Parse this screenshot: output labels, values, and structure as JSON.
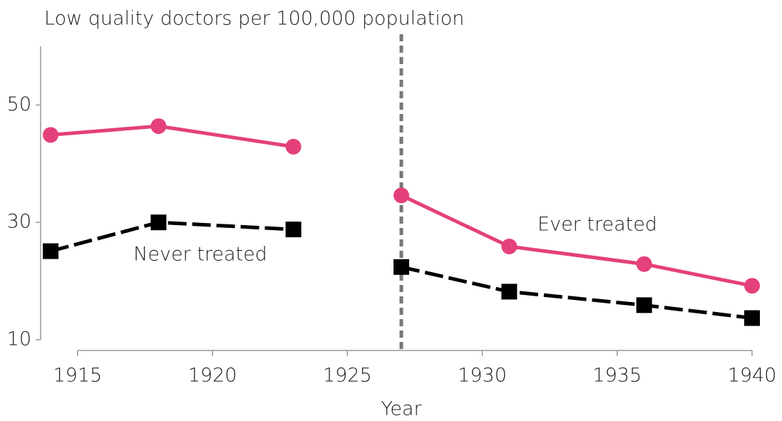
{
  "chart_data": {
    "type": "line",
    "title": "Low quality doctors per 100,000 population",
    "x_label": "Year",
    "x": [
      1914,
      1918,
      1923,
      1925,
      1927,
      1931,
      1936,
      1940
    ],
    "series": [
      {
        "name": "Ever treated",
        "color": "#e4407b",
        "marker": "circle",
        "values": [
          44.9,
          46.4,
          42.9,
          null,
          34.6,
          25.9,
          22.9,
          19.2
        ]
      },
      {
        "name": "Never treated",
        "color": "#000000",
        "marker": "square",
        "values": [
          25.1,
          30.0,
          28.8,
          null,
          22.4,
          18.2,
          15.9,
          13.7
        ]
      }
    ],
    "vline": 1927,
    "xlim": [
      1914,
      1940
    ],
    "xticks": [
      1915,
      1920,
      1925,
      1930,
      1935,
      1940
    ],
    "ylim": [
      10,
      60
    ],
    "yticks": [
      10,
      30,
      50
    ],
    "grid": false
  }
}
